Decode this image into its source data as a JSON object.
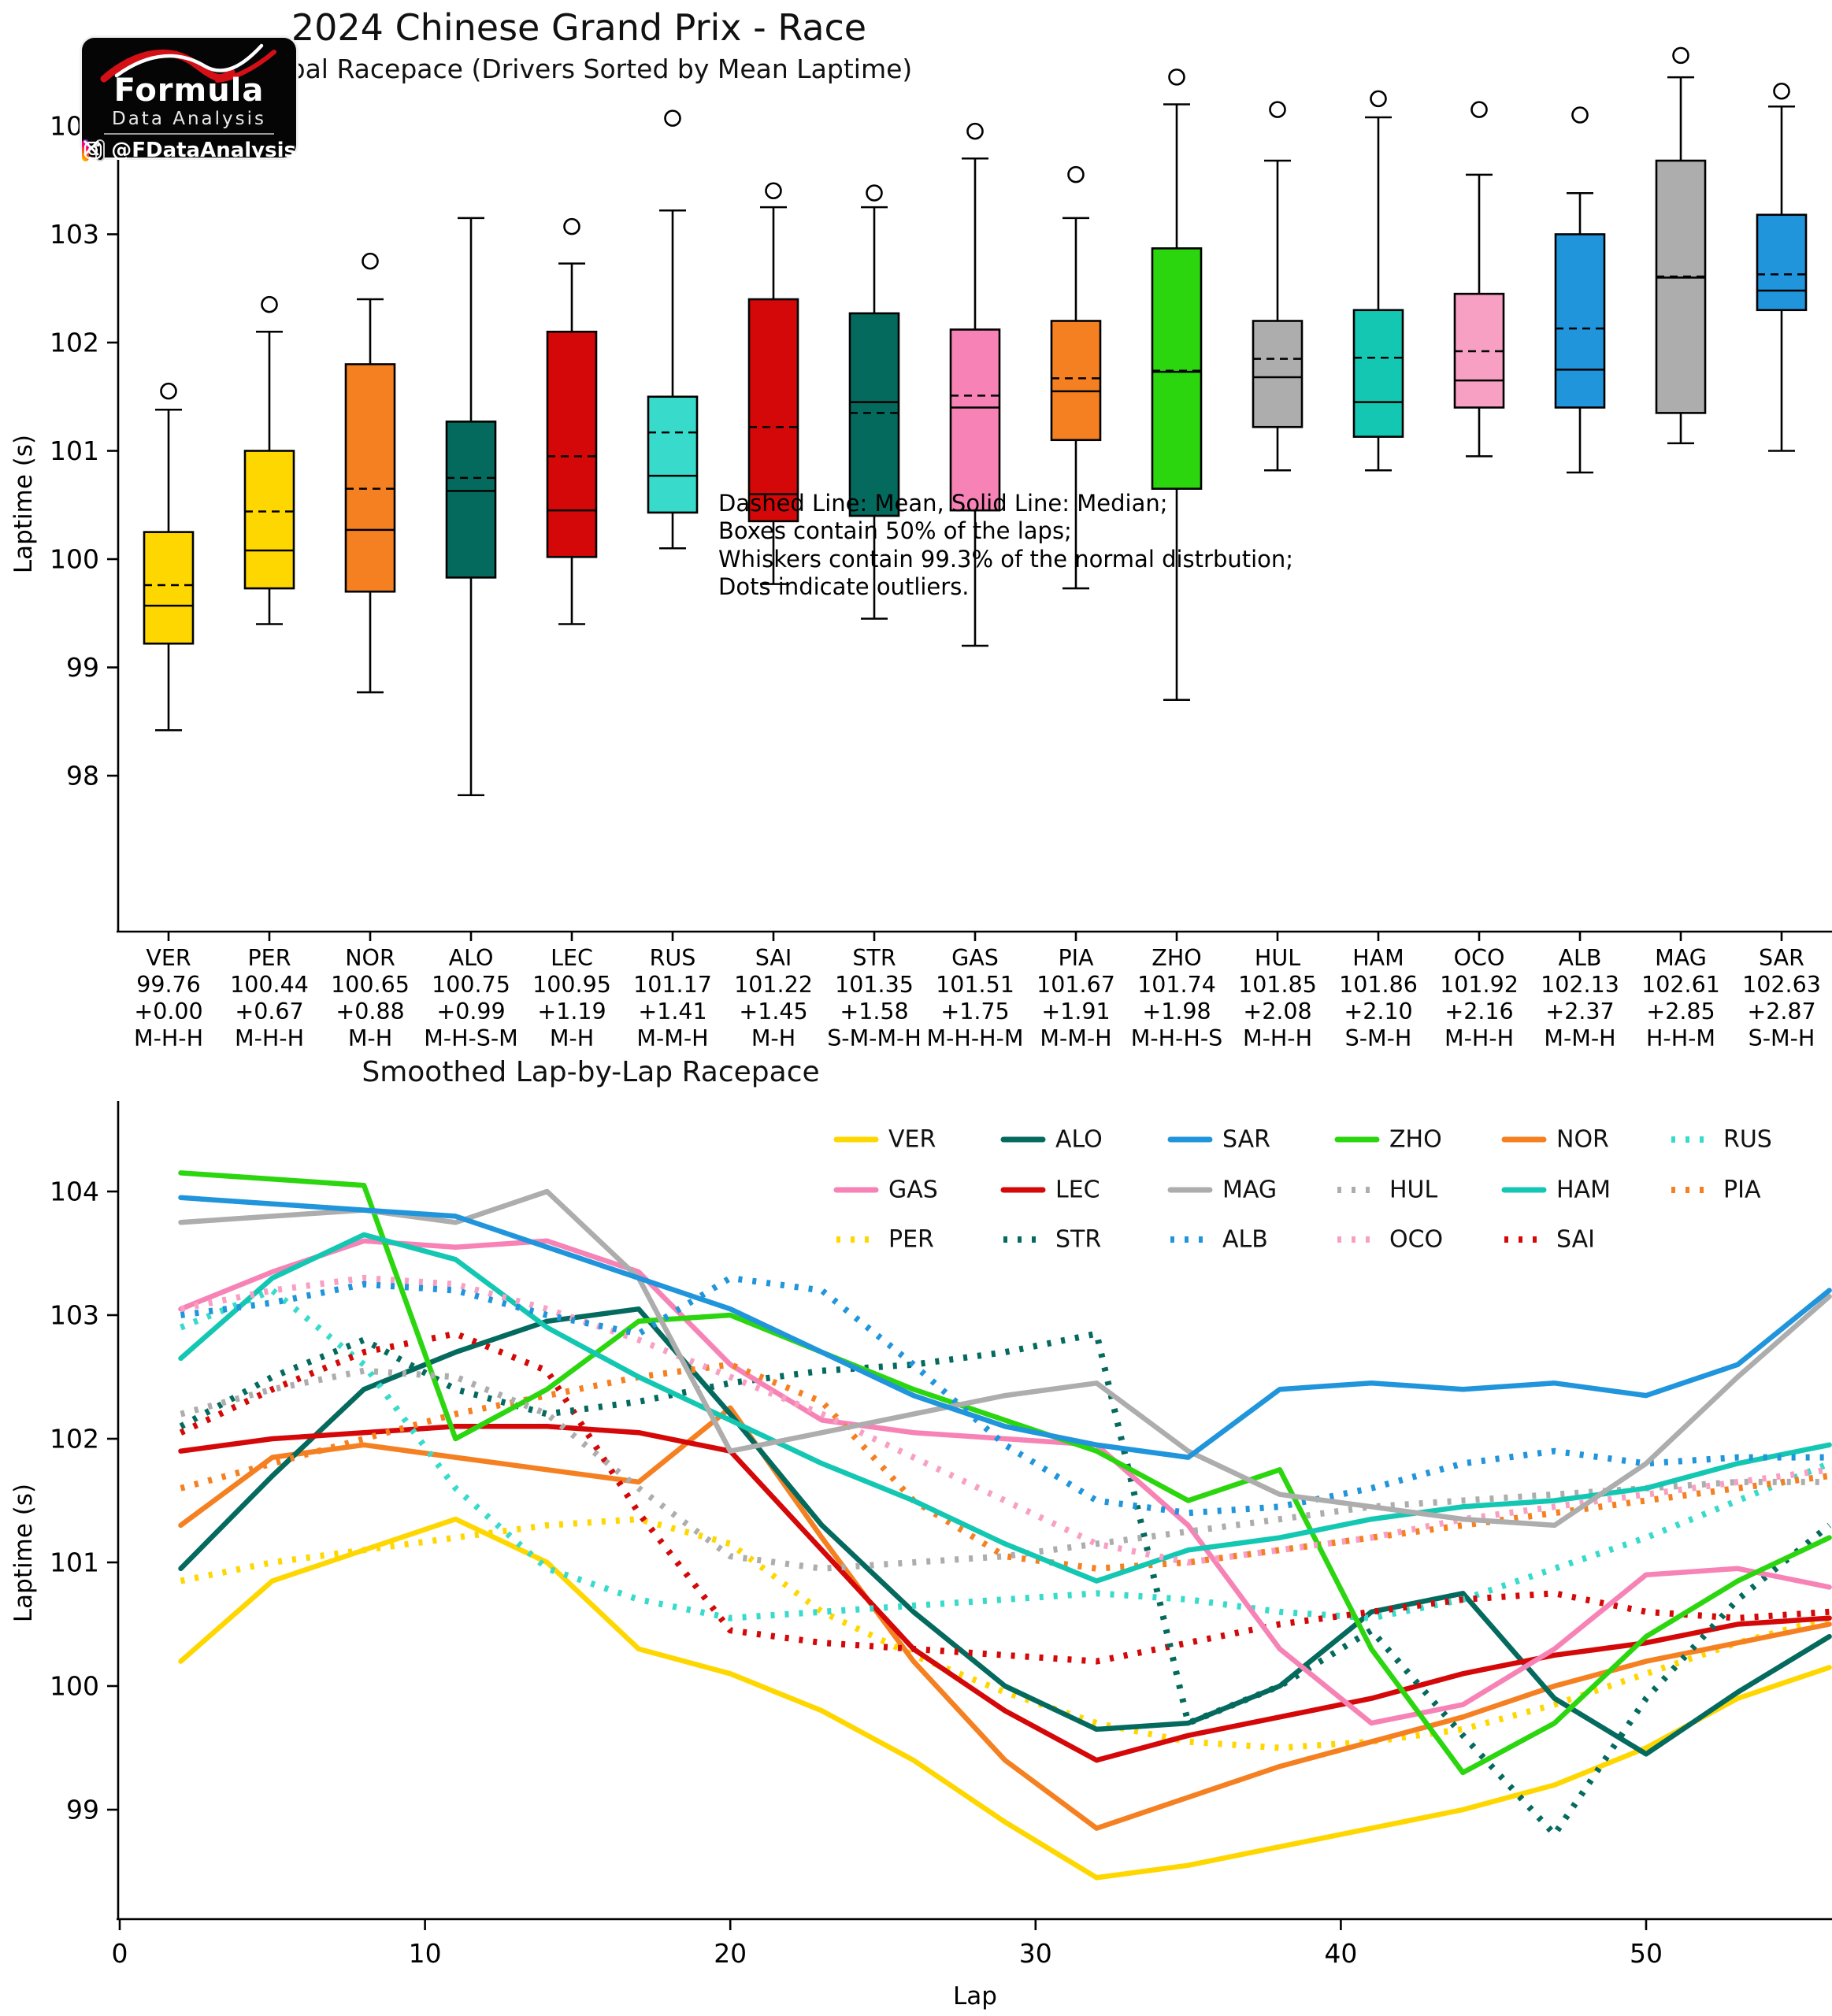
{
  "header": {
    "title": "2024 Chinese Grand Prix - Race",
    "subtitle": "Global Racepace (Drivers Sorted by Mean Laptime)"
  },
  "logo": {
    "brand_top": "Formula",
    "brand_bottom": "Data Analysis",
    "handle": "@FDataAnalysis",
    "icons": [
      "instagram-icon",
      "x-icon"
    ]
  },
  "chart_data": [
    {
      "type": "box",
      "ylabel": "Laptime (s)",
      "yticks": [
        98,
        99,
        100,
        101,
        102,
        103,
        104
      ],
      "ylim": [
        97.4,
        104.9
      ],
      "annotation": [
        "Dashed Line: Mean, Solid Line: Median;",
        "Boxes contain 50% of the laps;",
        "Whiskers contain 99.3% of the normal distrbution;",
        "Dots indicate outliers."
      ],
      "drivers": [
        {
          "code": "VER",
          "mean_label": "99.76",
          "gap": "+0.00",
          "compounds": "M-H-H",
          "color": "#FFD700",
          "lo": 98.42,
          "q1": 99.22,
          "med": 99.57,
          "mean": 99.76,
          "q3": 100.25,
          "hi": 101.38,
          "outliers": [
            101.45
          ]
        },
        {
          "code": "PER",
          "mean_label": "100.44",
          "gap": "+0.67",
          "compounds": "M-H-H",
          "color": "#FFD700",
          "lo": 99.4,
          "q1": 99.73,
          "med": 100.08,
          "mean": 100.44,
          "q3": 101.0,
          "hi": 102.1,
          "outliers": [
            102.25
          ]
        },
        {
          "code": "NOR",
          "mean_label": "100.65",
          "gap": "+0.88",
          "compounds": "M-H",
          "color": "#F58021",
          "lo": 98.77,
          "q1": 99.7,
          "med": 100.27,
          "mean": 100.65,
          "q3": 101.8,
          "hi": 102.4,
          "outliers": [
            102.65
          ]
        },
        {
          "code": "ALO",
          "mean_label": "100.75",
          "gap": "+0.99",
          "compounds": "M-H-S-M",
          "color": "#056A5E",
          "lo": 97.82,
          "q1": 99.83,
          "med": 100.63,
          "mean": 100.75,
          "q3": 101.27,
          "hi": 103.15,
          "outliers": []
        },
        {
          "code": "LEC",
          "mean_label": "100.95",
          "gap": "+1.19",
          "compounds": "M-H",
          "color": "#D40808",
          "lo": 99.4,
          "q1": 100.02,
          "med": 100.45,
          "mean": 100.95,
          "q3": 102.1,
          "hi": 102.73,
          "outliers": [
            102.97
          ]
        },
        {
          "code": "RUS",
          "mean_label": "101.17",
          "gap": "+1.41",
          "compounds": "M-M-H",
          "color": "#38DBCB",
          "lo": 100.1,
          "q1": 100.43,
          "med": 100.77,
          "mean": 101.17,
          "q3": 101.5,
          "hi": 103.22,
          "outliers": [
            103.97
          ]
        },
        {
          "code": "SAI",
          "mean_label": "101.22",
          "gap": "+1.45",
          "compounds": "M-H",
          "color": "#D40808",
          "lo": 99.77,
          "q1": 100.35,
          "med": 100.6,
          "mean": 101.22,
          "q3": 102.4,
          "hi": 103.25,
          "outliers": [
            103.3
          ]
        },
        {
          "code": "STR",
          "mean_label": "101.35",
          "gap": "+1.58",
          "compounds": "S-M-M-H",
          "color": "#056A5E",
          "lo": 99.45,
          "q1": 100.4,
          "med": 101.45,
          "mean": 101.35,
          "q3": 102.27,
          "hi": 103.25,
          "outliers": [
            103.28
          ]
        },
        {
          "code": "GAS",
          "mean_label": "101.51",
          "gap": "+1.75",
          "compounds": "M-H-H-M",
          "color": "#F783B6",
          "lo": 99.2,
          "q1": 100.45,
          "med": 101.4,
          "mean": 101.51,
          "q3": 102.12,
          "hi": 103.7,
          "outliers": [
            103.85
          ]
        },
        {
          "code": "PIA",
          "mean_label": "101.67",
          "gap": "+1.91",
          "compounds": "M-M-H",
          "color": "#F58021",
          "lo": 99.73,
          "q1": 101.1,
          "med": 101.55,
          "mean": 101.67,
          "q3": 102.2,
          "hi": 103.15,
          "outliers": [
            103.45
          ]
        },
        {
          "code": "ZHO",
          "mean_label": "101.74",
          "gap": "+1.98",
          "compounds": "M-H-H-S",
          "color": "#2BD60F",
          "lo": 98.7,
          "q1": 100.65,
          "med": 101.73,
          "mean": 101.74,
          "q3": 102.87,
          "hi": 104.2,
          "outliers": [
            104.35
          ]
        },
        {
          "code": "HUL",
          "mean_label": "101.85",
          "gap": "+2.08",
          "compounds": "M-H-H",
          "color": "#ADADAD",
          "lo": 100.82,
          "q1": 101.22,
          "med": 101.68,
          "mean": 101.85,
          "q3": 102.2,
          "hi": 103.68,
          "outliers": [
            104.05
          ]
        },
        {
          "code": "HAM",
          "mean_label": "101.86",
          "gap": "+2.10",
          "compounds": "S-M-H",
          "color": "#14C7B2",
          "lo": 100.82,
          "q1": 101.13,
          "med": 101.45,
          "mean": 101.86,
          "q3": 102.3,
          "hi": 104.08,
          "outliers": [
            104.15
          ]
        },
        {
          "code": "OCO",
          "mean_label": "101.92",
          "gap": "+2.16",
          "compounds": "M-H-H",
          "color": "#F8A0C4",
          "lo": 100.95,
          "q1": 101.4,
          "med": 101.65,
          "mean": 101.92,
          "q3": 102.45,
          "hi": 103.55,
          "outliers": [
            104.05
          ]
        },
        {
          "code": "ALB",
          "mean_label": "102.13",
          "gap": "+2.37",
          "compounds": "M-M-H",
          "color": "#2095DB",
          "lo": 100.8,
          "q1": 101.4,
          "med": 101.75,
          "mean": 102.13,
          "q3": 103.0,
          "hi": 103.38,
          "outliers": [
            104.0
          ]
        },
        {
          "code": "MAG",
          "mean_label": "102.61",
          "gap": "+2.85",
          "compounds": "H-H-M",
          "color": "#ADADAD",
          "lo": 101.07,
          "q1": 101.35,
          "med": 102.6,
          "mean": 102.61,
          "q3": 103.68,
          "hi": 104.45,
          "outliers": [
            104.55
          ]
        },
        {
          "code": "SAR",
          "mean_label": "102.63",
          "gap": "+2.87",
          "compounds": "S-M-H",
          "color": "#2095DB",
          "lo": 101.0,
          "q1": 102.3,
          "med": 102.48,
          "mean": 102.63,
          "q3": 103.18,
          "hi": 104.18,
          "outliers": [
            104.22
          ]
        }
      ]
    },
    {
      "type": "line",
      "title": "Smoothed Lap-by-Lap Racepace",
      "xlabel": "Lap",
      "ylabel": "Laptime (s)",
      "xticks": [
        0,
        10,
        20,
        30,
        40,
        50
      ],
      "yticks": [
        99,
        100,
        101,
        102,
        103,
        104
      ],
      "xlim": [
        0,
        56
      ],
      "ylim": [
        98.1,
        104.75
      ],
      "laps": [
        2,
        5,
        8,
        11,
        14,
        17,
        20,
        23,
        26,
        29,
        32,
        35,
        38,
        41,
        44,
        47,
        50,
        53,
        56
      ],
      "legend_rows": [
        [
          "VER",
          "ALO",
          "SAR",
          "ZHO",
          "NOR",
          "RUS"
        ],
        [
          "GAS",
          "LEC",
          "MAG",
          "HUL",
          "HAM",
          "PIA"
        ],
        [
          "PER",
          "STR",
          "ALB",
          "OCO",
          "SAI"
        ]
      ],
      "series": [
        {
          "code": "VER",
          "color": "#FFD700",
          "style": "solid",
          "values": [
            100.2,
            100.85,
            101.1,
            101.35,
            101.0,
            100.3,
            100.1,
            99.8,
            99.4,
            98.9,
            98.45,
            98.55,
            98.7,
            98.85,
            99.0,
            99.2,
            99.5,
            99.9,
            100.15
          ]
        },
        {
          "code": "PER",
          "color": "#FFD700",
          "style": "dotted",
          "values": [
            100.85,
            101.0,
            101.1,
            101.2,
            101.3,
            101.35,
            101.15,
            100.6,
            100.25,
            99.95,
            99.7,
            99.55,
            99.5,
            99.55,
            99.65,
            99.85,
            100.1,
            100.35,
            100.55
          ]
        },
        {
          "code": "NOR",
          "color": "#F58021",
          "style": "solid",
          "values": [
            101.3,
            101.85,
            101.95,
            101.85,
            101.75,
            101.65,
            102.25,
            101.2,
            100.2,
            99.4,
            98.85,
            99.1,
            99.35,
            99.55,
            99.75,
            100.0,
            100.2,
            100.35,
            100.5
          ]
        },
        {
          "code": "ALO",
          "color": "#056A5E",
          "style": "solid",
          "values": [
            100.95,
            101.7,
            102.4,
            102.7,
            102.95,
            103.05,
            102.2,
            101.3,
            100.6,
            100.0,
            99.65,
            99.7,
            100.0,
            100.6,
            100.75,
            99.9,
            99.45,
            99.95,
            100.4
          ]
        },
        {
          "code": "LEC",
          "color": "#D40808",
          "style": "solid",
          "values": [
            101.9,
            102.0,
            102.05,
            102.1,
            102.1,
            102.05,
            101.9,
            101.1,
            100.3,
            99.8,
            99.4,
            99.6,
            99.75,
            99.9,
            100.1,
            100.25,
            100.35,
            100.5,
            100.55
          ]
        },
        {
          "code": "RUS",
          "color": "#38DBCB",
          "style": "dotted",
          "values": [
            102.9,
            103.2,
            102.6,
            101.6,
            100.95,
            100.7,
            100.55,
            100.6,
            100.65,
            100.7,
            100.75,
            100.7,
            100.6,
            100.55,
            100.7,
            100.95,
            101.2,
            101.5,
            101.8
          ]
        },
        {
          "code": "SAI",
          "color": "#D40808",
          "style": "dotted",
          "values": [
            102.05,
            102.4,
            102.7,
            102.85,
            102.55,
            101.4,
            100.45,
            100.35,
            100.3,
            100.25,
            100.2,
            100.35,
            100.5,
            100.6,
            100.7,
            100.75,
            100.6,
            100.55,
            100.6
          ]
        },
        {
          "code": "STR",
          "color": "#056A5E",
          "style": "dotted",
          "values": [
            102.1,
            102.5,
            102.8,
            102.4,
            102.2,
            102.3,
            102.45,
            102.55,
            102.6,
            102.7,
            102.85,
            99.7,
            100.0,
            100.45,
            99.6,
            98.8,
            99.9,
            100.7,
            101.3
          ]
        },
        {
          "code": "GAS",
          "color": "#F783B6",
          "style": "solid",
          "values": [
            103.05,
            103.35,
            103.6,
            103.55,
            103.6,
            103.35,
            102.6,
            102.15,
            102.05,
            102.0,
            101.95,
            101.3,
            100.3,
            99.7,
            99.85,
            100.3,
            100.9,
            100.95,
            100.8
          ]
        },
        {
          "code": "PIA",
          "color": "#F58021",
          "style": "dotted",
          "values": [
            101.6,
            101.8,
            102.0,
            102.2,
            102.35,
            102.5,
            102.6,
            102.3,
            101.5,
            101.05,
            100.95,
            101.0,
            101.1,
            101.2,
            101.3,
            101.4,
            101.5,
            101.6,
            101.7
          ]
        },
        {
          "code": "ZHO",
          "color": "#2BD60F",
          "style": "solid",
          "values": [
            104.15,
            104.1,
            104.05,
            102.0,
            102.4,
            102.95,
            103.0,
            102.7,
            102.4,
            102.15,
            101.9,
            101.5,
            101.75,
            100.3,
            99.3,
            99.7,
            100.4,
            100.85,
            101.2
          ]
        },
        {
          "code": "HUL",
          "color": "#ADADAD",
          "style": "dotted",
          "values": [
            102.2,
            102.4,
            102.55,
            102.5,
            102.2,
            101.6,
            101.05,
            100.95,
            101.0,
            101.05,
            101.15,
            101.25,
            101.35,
            101.45,
            101.5,
            101.55,
            101.6,
            101.65,
            101.65
          ]
        },
        {
          "code": "HAM",
          "color": "#14C7B2",
          "style": "solid",
          "values": [
            102.65,
            103.3,
            103.65,
            103.45,
            102.9,
            102.5,
            102.15,
            101.8,
            101.5,
            101.15,
            100.85,
            101.1,
            101.2,
            101.35,
            101.45,
            101.5,
            101.6,
            101.8,
            101.95
          ]
        },
        {
          "code": "OCO",
          "color": "#F8A0C4",
          "style": "dotted",
          "values": [
            103.05,
            103.2,
            103.3,
            103.25,
            103.05,
            102.8,
            102.5,
            102.2,
            101.85,
            101.5,
            101.15,
            101.0,
            101.1,
            101.2,
            101.35,
            101.45,
            101.55,
            101.65,
            101.75
          ]
        },
        {
          "code": "ALB",
          "color": "#2095DB",
          "style": "dotted",
          "values": [
            103.0,
            103.1,
            103.25,
            103.2,
            103.0,
            102.85,
            103.3,
            103.2,
            102.6,
            101.95,
            101.5,
            101.4,
            101.45,
            101.6,
            101.8,
            101.9,
            101.8,
            101.85,
            101.85
          ]
        },
        {
          "code": "MAG",
          "color": "#ADADAD",
          "style": "solid",
          "values": [
            103.75,
            103.8,
            103.85,
            103.75,
            104.0,
            103.3,
            101.9,
            102.05,
            102.2,
            102.35,
            102.45,
            101.9,
            101.55,
            101.45,
            101.35,
            101.3,
            101.8,
            102.5,
            103.15
          ]
        },
        {
          "code": "SAR",
          "color": "#2095DB",
          "style": "solid",
          "values": [
            103.95,
            103.9,
            103.85,
            103.8,
            103.55,
            103.3,
            103.05,
            102.7,
            102.35,
            102.1,
            101.95,
            101.85,
            102.4,
            102.45,
            102.4,
            102.45,
            102.35,
            102.6,
            103.2
          ]
        }
      ]
    }
  ]
}
